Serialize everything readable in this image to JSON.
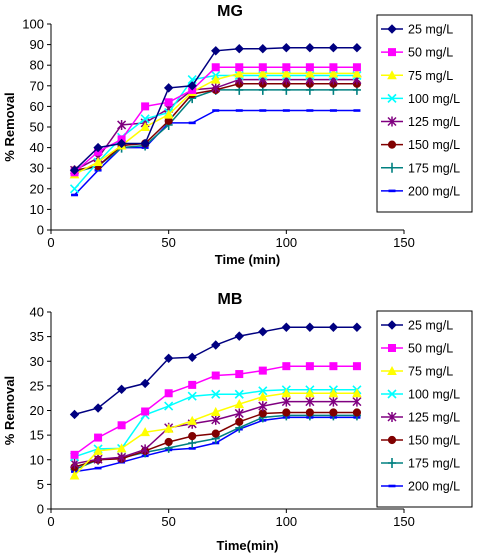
{
  "chart_data": [
    {
      "type": "line",
      "title": "MG",
      "xlabel": "Time (min)",
      "ylabel": "% Removal",
      "xlim": [
        0,
        150
      ],
      "ylim": [
        0,
        100
      ],
      "xticks": [
        0,
        50,
        100,
        150
      ],
      "yticks": [
        0,
        10,
        20,
        30,
        40,
        50,
        60,
        70,
        80,
        90,
        100
      ],
      "grid": false,
      "legend": "right",
      "x": [
        10,
        20,
        30,
        40,
        50,
        60,
        70,
        80,
        90,
        100,
        110,
        120,
        130
      ],
      "series": [
        {
          "name": "25 mg/L",
          "color": "#000080",
          "marker": "diamond",
          "values": [
            29,
            40,
            42,
            42,
            69,
            70,
            87,
            88,
            88,
            88.5,
            88.5,
            88.5,
            88.5
          ]
        },
        {
          "name": "50 mg/L",
          "color": "#ff00ff",
          "marker": "square",
          "values": [
            28,
            38,
            44,
            60,
            62,
            68,
            79,
            79,
            79,
            79,
            79,
            79,
            79
          ]
        },
        {
          "name": "75 mg/L",
          "color": "#ffff00",
          "marker": "triangle",
          "values": [
            27,
            33,
            41,
            50,
            56,
            67,
            73,
            76,
            76,
            76,
            76,
            76,
            76
          ]
        },
        {
          "name": "100 mg/L",
          "color": "#00ffff",
          "marker": "x",
          "values": [
            20,
            33,
            45,
            54,
            57,
            73,
            75,
            75,
            75,
            75,
            75,
            75,
            75
          ]
        },
        {
          "name": "125 mg/L",
          "color": "#800080",
          "marker": "star",
          "values": [
            29,
            35,
            51,
            52,
            59,
            68,
            69,
            73,
            73,
            73,
            73,
            73,
            73
          ]
        },
        {
          "name": "150 mg/L",
          "color": "#800000",
          "marker": "circle",
          "values": [
            29,
            31,
            41,
            42,
            53,
            66,
            68,
            71,
            71,
            71,
            71,
            71,
            71
          ]
        },
        {
          "name": "175 mg/L",
          "color": "#008080",
          "marker": "plus",
          "values": [
            28,
            31,
            40,
            41,
            51,
            64,
            68,
            68,
            68,
            68,
            68,
            68,
            68
          ]
        },
        {
          "name": "200 mg/L",
          "color": "#0000ff",
          "marker": "dash",
          "values": [
            17,
            29,
            40,
            40,
            52,
            52,
            58,
            58,
            58,
            58,
            58,
            58,
            58
          ]
        }
      ]
    },
    {
      "type": "line",
      "title": "MB",
      "xlabel": "Time(min)",
      "ylabel": "% Removal",
      "xlim": [
        0,
        150
      ],
      "ylim": [
        0,
        40
      ],
      "xticks": [
        0,
        50,
        100,
        150
      ],
      "yticks": [
        0,
        5,
        10,
        15,
        20,
        25,
        30,
        35,
        40
      ],
      "grid": false,
      "legend": "right",
      "x": [
        10,
        20,
        30,
        40,
        50,
        60,
        70,
        80,
        90,
        100,
        110,
        120,
        130
      ],
      "series": [
        {
          "name": "25 mg/L",
          "color": "#000080",
          "marker": "diamond",
          "values": [
            19.2,
            20.5,
            24.3,
            25.5,
            30.6,
            30.8,
            33.3,
            35.1,
            36.0,
            36.9,
            36.9,
            36.9,
            36.9
          ]
        },
        {
          "name": "50 mg/L",
          "color": "#ff00ff",
          "marker": "square",
          "values": [
            11,
            14.5,
            17,
            19.8,
            23.5,
            25.2,
            27.1,
            27.4,
            28.1,
            29.0,
            29.0,
            29.0,
            29.0
          ]
        },
        {
          "name": "75 mg/L",
          "color": "#ffff00",
          "marker": "triangle",
          "values": [
            6.8,
            11.8,
            12.3,
            15.6,
            16.3,
            17.9,
            19.7,
            21.3,
            22.8,
            23.5,
            23.5,
            23.5,
            23.5
          ]
        },
        {
          "name": "100 mg/L",
          "color": "#00ffff",
          "marker": "x",
          "values": [
            10.6,
            12.2,
            12.3,
            19.1,
            20.9,
            22.9,
            23.3,
            23.3,
            24.0,
            24.2,
            24.2,
            24.2,
            24.2
          ]
        },
        {
          "name": "125 mg/L",
          "color": "#800080",
          "marker": "star",
          "values": [
            9.2,
            10.1,
            10.5,
            12.1,
            16.5,
            17.3,
            18.1,
            19.4,
            20.9,
            21.8,
            21.8,
            21.8,
            21.8
          ]
        },
        {
          "name": "150 mg/L",
          "color": "#800000",
          "marker": "circle",
          "values": [
            8.5,
            10.0,
            10.2,
            11.8,
            13.6,
            14.8,
            15.3,
            17.7,
            19.4,
            19.6,
            19.6,
            19.6,
            19.6
          ]
        },
        {
          "name": "175 mg/L",
          "color": "#008080",
          "marker": "plus",
          "values": [
            8.0,
            10.0,
            10.4,
            11.5,
            12.4,
            13.4,
            14.3,
            16.5,
            18.6,
            19.0,
            19.0,
            19.0,
            19.0
          ]
        },
        {
          "name": "200 mg/L",
          "color": "#0000ff",
          "marker": "dash",
          "values": [
            7.6,
            8.3,
            9.5,
            10.8,
            12.0,
            12.3,
            13.4,
            16.2,
            18.0,
            18.6,
            18.6,
            18.6,
            18.6
          ]
        }
      ]
    }
  ]
}
